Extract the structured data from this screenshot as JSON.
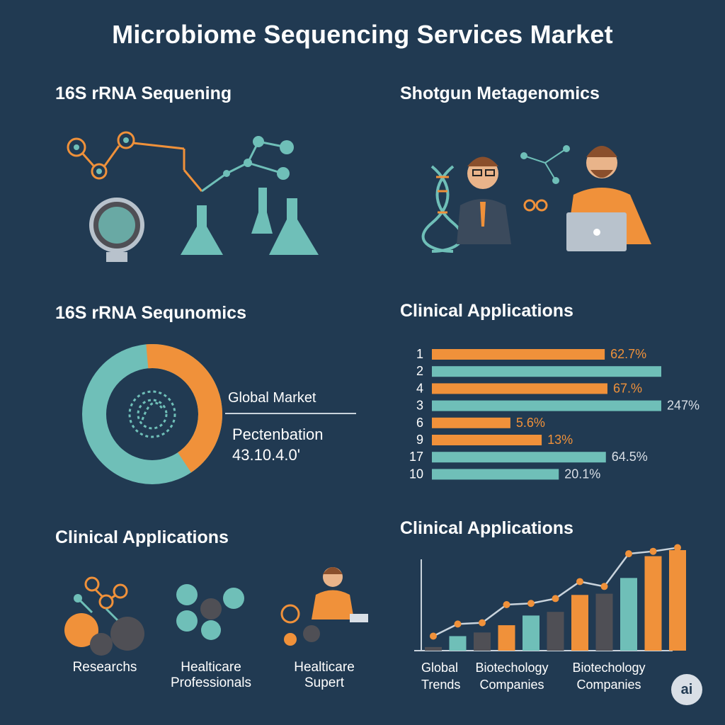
{
  "page": {
    "title": "Microbiome Sequencing Services Market"
  },
  "panels": {
    "p1_title": "16S rRNA Sequening",
    "p2_title": "Shotgun Metagenomics",
    "p3_title": "16S rRNA Sequnomics",
    "p4_title": "Clinical Applications",
    "p5_title": "Clinical Applications",
    "p6_title": "Clinical Applications"
  },
  "donut": {
    "global_label": "Global Market",
    "sub_label": "Pectenbation",
    "sub_value": "43.10.4.0'",
    "orange_fraction": 0.42
  },
  "segments": {
    "researchs": "Researchs",
    "healthcare_line1": "Healticare",
    "healthcare_line2": "Professionals",
    "support_line1": "Healticare",
    "support_line2": "Supert"
  },
  "badge": "ai",
  "colors": {
    "background": "#213a52",
    "orange": "#f0913a",
    "teal": "#6fbfb8",
    "gray": "#4f4f55"
  },
  "chart_data": [
    {
      "type": "bar",
      "orientation": "horizontal",
      "title": "Clinical Applications",
      "categories": [
        "1",
        "2",
        "4",
        "3",
        "6",
        "9",
        "17",
        "10"
      ],
      "values": [
        62.7,
        null,
        67,
        247,
        5.6,
        13,
        64.5,
        20.1
      ],
      "value_labels": [
        "62.7%",
        "",
        "67.%",
        "247%",
        "5.6%",
        "13%",
        "64.5%",
        "20.1%"
      ],
      "bar_colors": [
        "orange",
        "teal",
        "orange",
        "teal",
        "orange",
        "orange",
        "teal",
        "teal"
      ]
    },
    {
      "type": "bar",
      "title": "Clinical Applications",
      "x_labels": [
        [
          "Global",
          "Trends"
        ],
        [
          "Biotechology",
          "Companies"
        ],
        [
          "Biotechology",
          "Companies"
        ]
      ],
      "series": [
        {
          "values": [
            3,
            12,
            15,
            21,
            29,
            32,
            46,
            47,
            60,
            78,
            83
          ]
        }
      ],
      "bar_colors": [
        "gray",
        "teal",
        "gray",
        "orange",
        "teal",
        "gray",
        "orange",
        "gray",
        "teal",
        "orange",
        "orange"
      ],
      "trend_line": [
        12,
        22,
        23,
        38,
        39,
        43,
        57,
        53,
        80,
        82,
        85
      ],
      "ylim": [
        0,
        90
      ]
    }
  ]
}
